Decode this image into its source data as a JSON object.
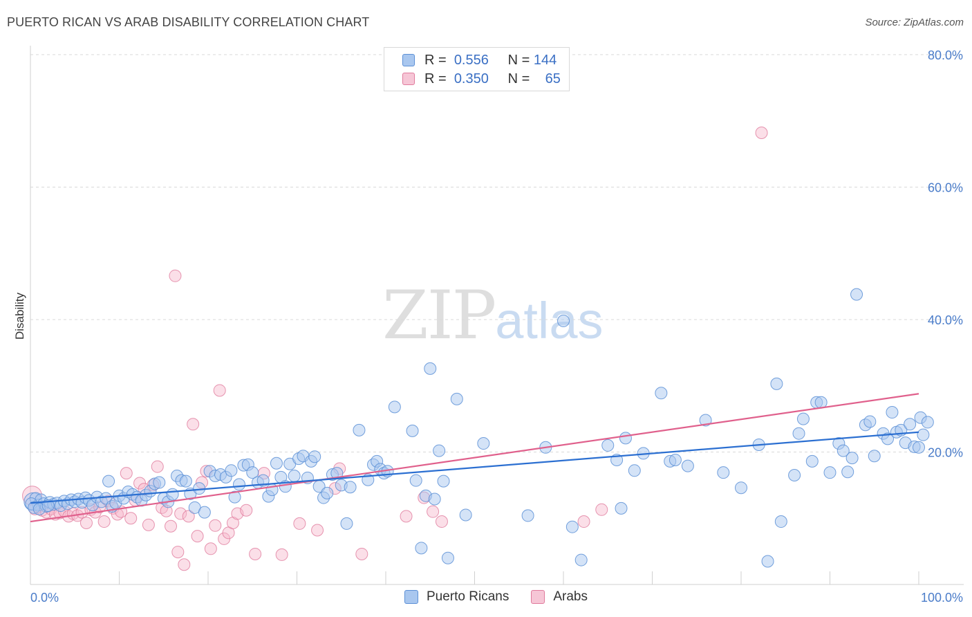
{
  "title": "PUERTO RICAN VS ARAB DISABILITY CORRELATION CHART",
  "source": "Source: ZipAtlas.com",
  "watermark": {
    "zip": "ZIP",
    "atlas": "atlas"
  },
  "legend": {
    "rows": [
      {
        "r_label": "R =",
        "r_value": "0.556",
        "n_label": "N =",
        "n_value": "144"
      },
      {
        "r_label": "R =",
        "r_value": "0.350",
        "n_label": "N =",
        "n_value": "65"
      }
    ]
  },
  "bottom_legend": {
    "blue": "Puerto Ricans",
    "pink": "Arabs"
  },
  "colors": {
    "blue_fill": "#a9c7ef",
    "blue_stroke": "#5b8fd6",
    "blue_line": "#2b6fd1",
    "pink_fill": "#f6b8cc",
    "pink_stroke": "#e07a9c",
    "pink_line": "#e0608c",
    "grid": "#d9d9d9",
    "axis_text": "#4a7cc9"
  },
  "chart_data": {
    "type": "scatter",
    "title": "PUERTO RICAN VS ARAB DISABILITY CORRELATION CHART",
    "xlabel": "",
    "ylabel": "Disability",
    "xlim": [
      0,
      100
    ],
    "ylim": [
      0,
      80
    ],
    "x_tick_labels": [
      "0.0%",
      "100.0%"
    ],
    "y_tick_labels": [
      "20.0%",
      "40.0%",
      "60.0%",
      "80.0%"
    ],
    "y_ticks": [
      20,
      40,
      60,
      80
    ],
    "grid": true,
    "series": [
      {
        "name": "Puerto Ricans",
        "color": "#5b8fd6",
        "trend": {
          "x": [
            0,
            100
          ],
          "y": [
            12.3,
            23.0
          ]
        },
        "points": [
          [
            0.3,
            12.5
          ],
          [
            0.6,
            13.0
          ],
          [
            0.9,
            12.0
          ],
          [
            1.2,
            12.8
          ],
          [
            1.5,
            12.2
          ],
          [
            1.8,
            11.8
          ],
          [
            2.2,
            12.4
          ],
          [
            2.6,
            12.1
          ],
          [
            3.0,
            12.3
          ],
          [
            3.4,
            11.9
          ],
          [
            3.8,
            12.6
          ],
          [
            4.2,
            12.2
          ],
          [
            4.6,
            12.8
          ],
          [
            5.0,
            12.5
          ],
          [
            5.4,
            12.9
          ],
          [
            5.8,
            12.4
          ],
          [
            6.2,
            13.1
          ],
          [
            6.6,
            12.7
          ],
          [
            7.0,
            12.0
          ],
          [
            7.5,
            13.2
          ],
          [
            8.0,
            12.5
          ],
          [
            8.5,
            13.0
          ],
          [
            8.8,
            15.6
          ],
          [
            9.2,
            11.8
          ],
          [
            9.6,
            12.3
          ],
          [
            10.0,
            13.4
          ],
          [
            10.5,
            13.0
          ],
          [
            11.0,
            14.0
          ],
          [
            11.5,
            13.6
          ],
          [
            12.0,
            13.2
          ],
          [
            12.5,
            12.7
          ],
          [
            13.0,
            13.5
          ],
          [
            13.5,
            14.1
          ],
          [
            14.0,
            15.2
          ],
          [
            14.5,
            15.4
          ],
          [
            15.0,
            13.0
          ],
          [
            15.5,
            12.5
          ],
          [
            16.0,
            13.6
          ],
          [
            16.5,
            16.4
          ],
          [
            17.0,
            15.7
          ],
          [
            17.5,
            15.6
          ],
          [
            18.0,
            13.7
          ],
          [
            18.5,
            11.6
          ],
          [
            19.0,
            14.5
          ],
          [
            19.6,
            10.9
          ],
          [
            20.2,
            17.1
          ],
          [
            20.8,
            16.4
          ],
          [
            21.4,
            16.6
          ],
          [
            22.0,
            16.2
          ],
          [
            22.6,
            17.2
          ],
          [
            23.0,
            13.2
          ],
          [
            23.5,
            15.1
          ],
          [
            24.0,
            18.0
          ],
          [
            24.5,
            18.1
          ],
          [
            25.0,
            16.9
          ],
          [
            25.6,
            15.4
          ],
          [
            26.2,
            15.7
          ],
          [
            26.8,
            13.3
          ],
          [
            27.2,
            14.3
          ],
          [
            27.7,
            18.3
          ],
          [
            28.2,
            16.2
          ],
          [
            28.7,
            14.8
          ],
          [
            29.2,
            18.2
          ],
          [
            29.7,
            16.4
          ],
          [
            30.2,
            19.0
          ],
          [
            30.7,
            19.4
          ],
          [
            31.2,
            16.1
          ],
          [
            31.6,
            18.6
          ],
          [
            32.0,
            19.3
          ],
          [
            32.5,
            14.8
          ],
          [
            33.0,
            13.1
          ],
          [
            33.4,
            13.8
          ],
          [
            34.0,
            16.6
          ],
          [
            34.5,
            16.8
          ],
          [
            35.0,
            15.0
          ],
          [
            35.6,
            9.2
          ],
          [
            36.0,
            14.7
          ],
          [
            37.0,
            23.3
          ],
          [
            38.0,
            15.8
          ],
          [
            38.6,
            18.1
          ],
          [
            39.0,
            18.6
          ],
          [
            39.4,
            17.4
          ],
          [
            39.8,
            16.8
          ],
          [
            40.2,
            17.1
          ],
          [
            41.0,
            26.8
          ],
          [
            43.0,
            23.2
          ],
          [
            43.4,
            15.7
          ],
          [
            44.0,
            5.5
          ],
          [
            44.5,
            13.4
          ],
          [
            45.0,
            32.6
          ],
          [
            45.5,
            12.9
          ],
          [
            46.0,
            20.2
          ],
          [
            46.5,
            15.6
          ],
          [
            47.0,
            4.0
          ],
          [
            48.0,
            28.0
          ],
          [
            49.0,
            10.5
          ],
          [
            51.0,
            21.3
          ],
          [
            56.0,
            10.4
          ],
          [
            58.0,
            20.7
          ],
          [
            60.0,
            39.8
          ],
          [
            61.0,
            8.7
          ],
          [
            62.0,
            3.7
          ],
          [
            65.0,
            21.0
          ],
          [
            66.0,
            18.8
          ],
          [
            66.5,
            11.5
          ],
          [
            67.0,
            22.1
          ],
          [
            68.0,
            17.2
          ],
          [
            69.0,
            19.8
          ],
          [
            71.0,
            28.9
          ],
          [
            72.0,
            18.6
          ],
          [
            72.6,
            18.8
          ],
          [
            74.0,
            17.9
          ],
          [
            76.0,
            24.8
          ],
          [
            78.0,
            16.9
          ],
          [
            80.0,
            14.6
          ],
          [
            82.0,
            21.1
          ],
          [
            83.0,
            3.5
          ],
          [
            84.0,
            30.3
          ],
          [
            84.5,
            9.5
          ],
          [
            86.0,
            16.5
          ],
          [
            86.5,
            22.8
          ],
          [
            87.0,
            25.0
          ],
          [
            88.0,
            18.6
          ],
          [
            88.5,
            27.5
          ],
          [
            89.0,
            27.5
          ],
          [
            90.0,
            16.9
          ],
          [
            91.0,
            21.3
          ],
          [
            91.5,
            20.2
          ],
          [
            92.0,
            17.0
          ],
          [
            92.5,
            19.1
          ],
          [
            93.0,
            43.8
          ],
          [
            94.0,
            24.1
          ],
          [
            94.5,
            24.6
          ],
          [
            95.0,
            19.4
          ],
          [
            96.0,
            22.8
          ],
          [
            96.5,
            22.0
          ],
          [
            97.0,
            26.0
          ],
          [
            97.5,
            23.0
          ],
          [
            98.0,
            23.3
          ],
          [
            98.5,
            21.4
          ],
          [
            99.0,
            24.2
          ],
          [
            99.5,
            20.8
          ],
          [
            100.0,
            20.7
          ],
          [
            100.2,
            25.2
          ],
          [
            100.5,
            22.6
          ],
          [
            101.0,
            24.5
          ],
          [
            0.1,
            12.2
          ],
          [
            0.4,
            11.6
          ],
          [
            1.0,
            11.4
          ],
          [
            2.0,
            11.9
          ]
        ]
      },
      {
        "name": "Arabs",
        "color": "#e07a9c",
        "trend": {
          "x": [
            0,
            100
          ],
          "y": [
            9.5,
            28.8
          ]
        },
        "points": [
          [
            0.2,
            13.4
          ],
          [
            0.5,
            11.4
          ],
          [
            0.9,
            11.7
          ],
          [
            1.3,
            11.2
          ],
          [
            1.8,
            10.9
          ],
          [
            2.3,
            11.4
          ],
          [
            2.8,
            10.6
          ],
          [
            3.3,
            10.8
          ],
          [
            3.8,
            11.1
          ],
          [
            4.3,
            10.3
          ],
          [
            4.8,
            10.7
          ],
          [
            5.3,
            10.4
          ],
          [
            5.8,
            10.9
          ],
          [
            6.3,
            9.3
          ],
          [
            6.8,
            11.3
          ],
          [
            7.3,
            10.9
          ],
          [
            7.8,
            11.7
          ],
          [
            8.3,
            9.5
          ],
          [
            8.8,
            12.6
          ],
          [
            9.3,
            11.5
          ],
          [
            9.8,
            10.6
          ],
          [
            10.2,
            11.0
          ],
          [
            10.8,
            16.8
          ],
          [
            11.3,
            10.0
          ],
          [
            11.8,
            12.7
          ],
          [
            12.3,
            15.3
          ],
          [
            12.8,
            14.4
          ],
          [
            13.3,
            9.0
          ],
          [
            13.8,
            15.0
          ],
          [
            14.3,
            17.8
          ],
          [
            14.8,
            11.6
          ],
          [
            15.3,
            11.1
          ],
          [
            15.8,
            8.8
          ],
          [
            16.3,
            46.6
          ],
          [
            16.6,
            4.9
          ],
          [
            16.9,
            10.7
          ],
          [
            17.3,
            3.0
          ],
          [
            17.8,
            10.3
          ],
          [
            18.3,
            24.2
          ],
          [
            18.8,
            7.3
          ],
          [
            19.3,
            15.4
          ],
          [
            19.8,
            17.1
          ],
          [
            20.3,
            5.4
          ],
          [
            20.8,
            8.9
          ],
          [
            21.3,
            29.3
          ],
          [
            21.8,
            6.9
          ],
          [
            22.3,
            7.8
          ],
          [
            22.8,
            9.3
          ],
          [
            23.3,
            10.7
          ],
          [
            24.3,
            11.2
          ],
          [
            25.3,
            4.6
          ],
          [
            26.3,
            16.8
          ],
          [
            28.3,
            4.5
          ],
          [
            30.3,
            9.2
          ],
          [
            32.3,
            8.2
          ],
          [
            34.3,
            14.5
          ],
          [
            34.8,
            17.5
          ],
          [
            37.3,
            4.6
          ],
          [
            42.3,
            10.3
          ],
          [
            44.3,
            13.1
          ],
          [
            45.3,
            11.0
          ],
          [
            46.3,
            9.5
          ],
          [
            62.3,
            9.5
          ],
          [
            64.3,
            11.3
          ],
          [
            82.3,
            68.2
          ]
        ]
      }
    ]
  }
}
